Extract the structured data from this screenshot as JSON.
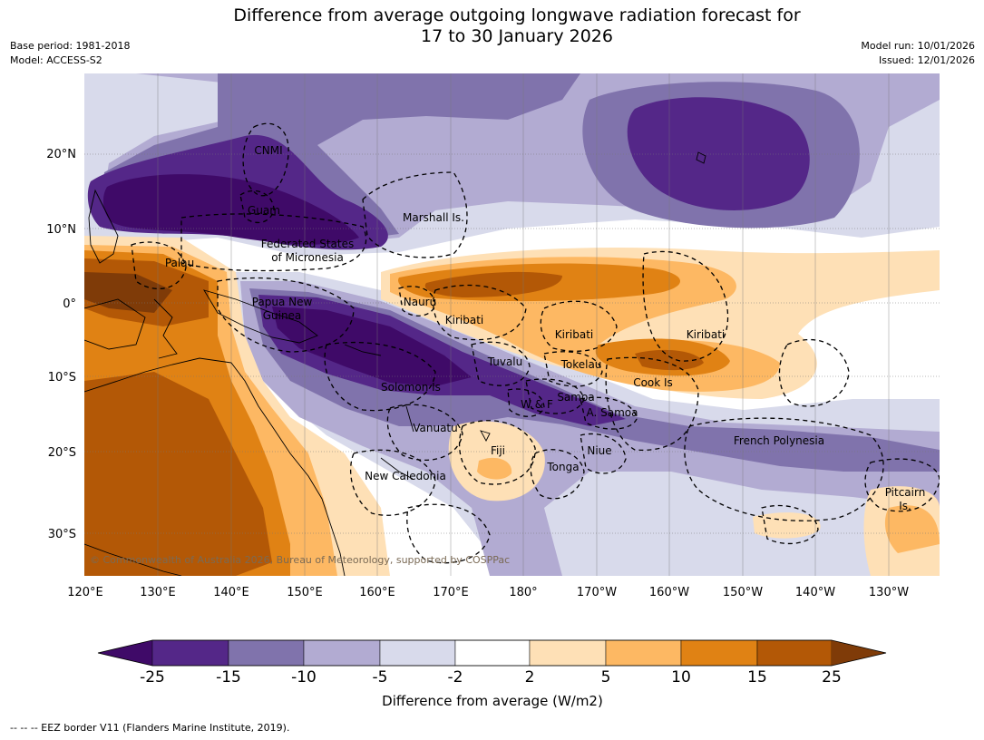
{
  "header": {
    "title_line1": "Difference from average outgoing longwave radiation forecast for",
    "title_line2": "17 to 30 January 2026",
    "base_period": "Base period: 1981-2018",
    "model": "Model: ACCESS-S2",
    "model_run": "Model run: 10/01/2026",
    "issued": "Issued: 12/01/2026"
  },
  "map": {
    "lon_ticks": [
      "120°E",
      "130°E",
      "140°E",
      "150°E",
      "160°E",
      "170°E",
      "180°",
      "170°W",
      "160°W",
      "150°W",
      "140°W",
      "130°W"
    ],
    "lat_ticks": [
      "20°N",
      "10°N",
      "0°",
      "10°S",
      "20°S",
      "30°S"
    ],
    "places": {
      "cnmi": "CNMI",
      "guam": "Guam",
      "marshall": "Marshall Is.",
      "fsm1": "Federated States",
      "fsm2": "of Micronesia",
      "palau": "Palau",
      "png1": "Papua New",
      "png2": "Guinea",
      "nauru": "Nauru",
      "kiribati_w": "Kiribati",
      "kiribati_c": "Kiribati",
      "kiribati_e": "Kiribati",
      "tuvalu": "Tuvalu",
      "tokelau": "Tokelau",
      "solomon": "Solomon Is",
      "samoa": "Samoa",
      "wf": "W & F",
      "asamoa": "A. Samoa",
      "cook": "Cook Is",
      "vanuatu": "Vanuatu",
      "fiji": "Fiji",
      "niue": "Niue",
      "tonga": "Tonga",
      "french_polynesia": "French Polynesia",
      "new_caledonia": "New Caledonia",
      "pitcairn1": "Pitcairn",
      "pitcairn2": "Is."
    },
    "copyright": "© Commonwealth of Australia 2026, Bureau of Meteorology, supported by COSPPac"
  },
  "colorbar": {
    "levels": [
      "-25",
      "-15",
      "-10",
      "-5",
      "-2",
      "2",
      "5",
      "10",
      "15",
      "25"
    ],
    "colors": [
      "#3f0a68",
      "#542788",
      "#8073ac",
      "#b2abd2",
      "#d8daeb",
      "#ffffff",
      "#fee0b6",
      "#fdb863",
      "#e08214",
      "#b35806",
      "#7f3b08"
    ],
    "title": "Difference from average (W/m2)"
  },
  "footnote": "--  --  -- EEZ border V11 (Flanders Marine Institute, 2019)."
}
